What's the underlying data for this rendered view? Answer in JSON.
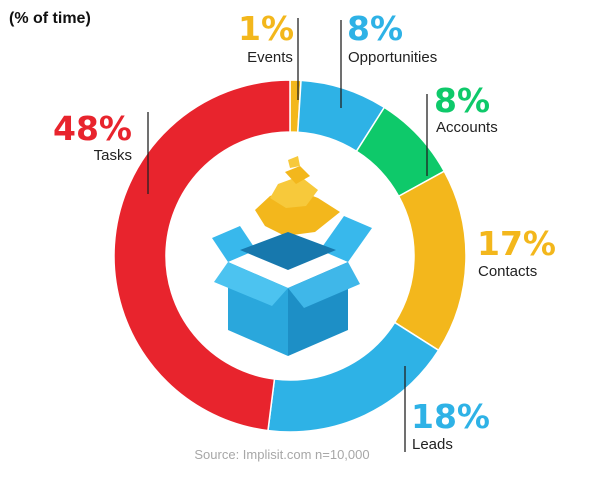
{
  "subtitle": "(% of time)",
  "source": "Source: Implisit.com n=10,000",
  "colors": {
    "red": "#e8242d",
    "blue": "#2eb2e6",
    "green": "#0ec96a",
    "yellow": "#f3b71c"
  },
  "chart_data": {
    "type": "pie",
    "donut": true,
    "unit": "%",
    "subtitle": "(% of time)",
    "segments": [
      {
        "label": "Events",
        "value": 1,
        "text": "1%",
        "color": "#f3b71c"
      },
      {
        "label": "Opportunities",
        "value": 8,
        "text": "8%",
        "color": "#2eb2e6"
      },
      {
        "label": "Accounts",
        "value": 8,
        "text": "8%",
        "color": "#0ec96a"
      },
      {
        "label": "Contacts",
        "value": 17,
        "text": "17%",
        "color": "#f3b71c"
      },
      {
        "label": "Leads",
        "value": 18,
        "text": "18%",
        "color": "#2eb2e6"
      },
      {
        "label": "Tasks",
        "value": 48,
        "text": "48%",
        "color": "#e8242d"
      }
    ],
    "source": "Source: Implisit.com n=10,000",
    "center_icon": "open-box-icon"
  }
}
